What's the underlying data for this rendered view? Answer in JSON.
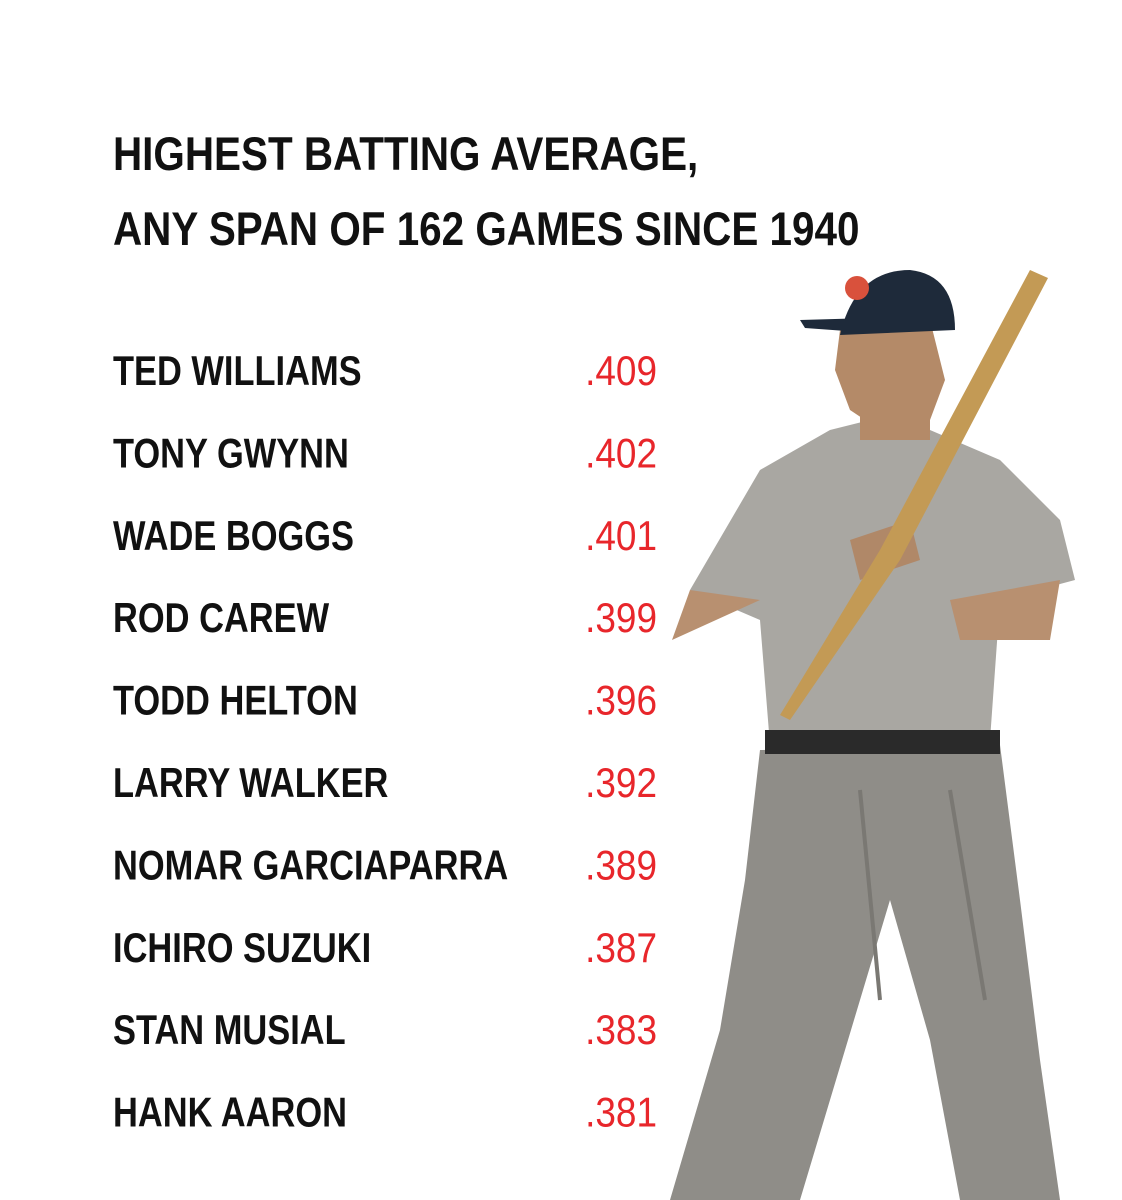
{
  "title": [
    "HIGHEST BATTING AVERAGE,",
    "ANY SPAN OF 162 GAMES SINCE 1940"
  ],
  "rows": [
    {
      "name": "TED WILLIAMS",
      "value": ".409"
    },
    {
      "name": "TONY GWYNN",
      "value": ".402"
    },
    {
      "name": "WADE BOGGS",
      "value": ".401"
    },
    {
      "name": "ROD CAREW",
      "value": ".399"
    },
    {
      "name": "TODD HELTON",
      "value": ".396"
    },
    {
      "name": "LARRY WALKER",
      "value": ".392"
    },
    {
      "name": "NOMAR GARCIAPARRA",
      "value": ".389"
    },
    {
      "name": "ICHIRO SUZUKI",
      "value": ".387"
    },
    {
      "name": "STAN MUSIAL",
      "value": ".383"
    },
    {
      "name": "HANK AARON",
      "value": ".381"
    }
  ]
}
